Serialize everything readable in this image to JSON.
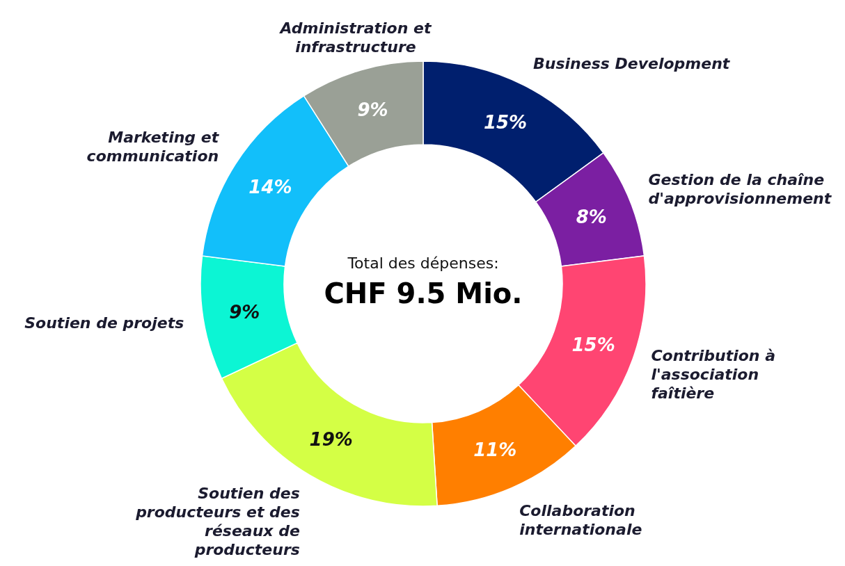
{
  "chart_data": {
    "type": "donut",
    "title": "CHF 9.5 Mio.",
    "subtitle": "Total des dépenses:",
    "categories": [
      "Business Development",
      "Gestion de la chaîne d'approvisionnement",
      "Contribution à l'association faîtière",
      "Collaboration internationale",
      "Soutien des producteurs et des réseaux de producteurs",
      "Soutien de projets",
      "Marketing et communication",
      "Administration et infrastructure"
    ],
    "values": [
      15,
      8,
      15,
      11,
      19,
      9,
      14,
      9
    ],
    "colors": [
      "#001f6e",
      "#7b1fa2",
      "#ff4572",
      "#ff7f00",
      "#d4ff45",
      "#0cf5d4",
      "#12bffa",
      "#9aa096"
    ],
    "value_labels": [
      "15%",
      "8%",
      "15%",
      "11%",
      "19%",
      "9%",
      "14%",
      "9%"
    ]
  }
}
